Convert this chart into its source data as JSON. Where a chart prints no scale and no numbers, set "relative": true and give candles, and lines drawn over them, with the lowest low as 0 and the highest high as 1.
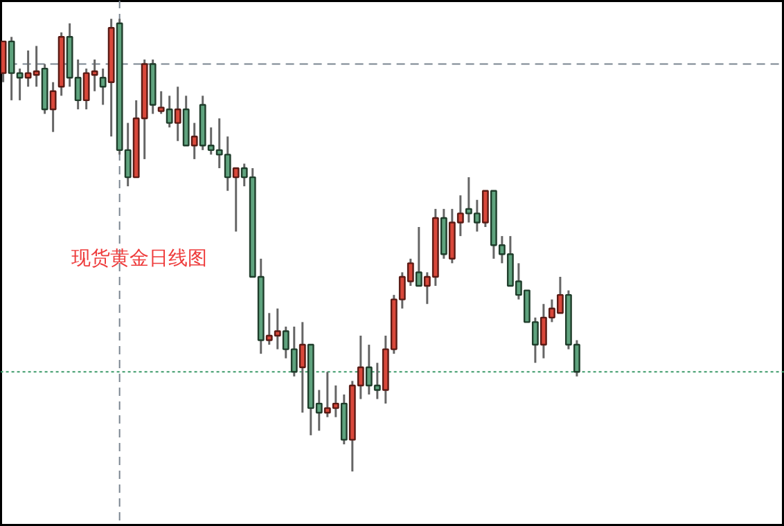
{
  "chart_data": {
    "type": "candlestick",
    "relative": true,
    "categories": [
      null,
      null,
      null,
      null,
      null,
      null,
      null,
      null,
      null,
      null,
      null,
      null,
      null,
      null,
      null,
      null,
      null,
      null,
      null,
      null,
      null,
      null,
      null,
      null,
      null,
      null,
      null,
      null,
      null,
      null,
      null,
      null,
      null,
      null,
      null,
      null,
      null,
      null,
      null,
      null,
      null,
      null,
      null,
      null,
      null,
      null,
      null,
      null,
      null,
      null,
      null,
      null,
      null,
      null,
      null,
      null,
      null,
      null,
      null,
      null,
      null,
      null,
      null,
      null,
      null,
      null,
      null,
      null,
      null,
      null
    ],
    "ohlc": [
      [
        0.88,
        0.95,
        0.86,
        0.95
      ],
      [
        0.95,
        0.96,
        0.82,
        0.88
      ],
      [
        0.88,
        0.89,
        0.82,
        0.87
      ],
      [
        0.87,
        0.93,
        0.85,
        0.88
      ],
      [
        0.88,
        0.94,
        0.85,
        0.88
      ],
      [
        0.89,
        0.9,
        0.79,
        0.8
      ],
      [
        0.8,
        0.86,
        0.75,
        0.84
      ],
      [
        0.85,
        0.97,
        0.83,
        0.96
      ],
      [
        0.96,
        0.99,
        0.85,
        0.87
      ],
      [
        0.87,
        0.91,
        0.8,
        0.82
      ],
      [
        0.82,
        0.89,
        0.8,
        0.88
      ],
      [
        0.88,
        0.91,
        0.84,
        0.88
      ],
      [
        0.87,
        0.89,
        0.81,
        0.85
      ],
      [
        0.86,
        1.0,
        0.74,
        0.98
      ],
      [
        0.99,
        1.0,
        0.7,
        0.71
      ],
      [
        0.71,
        0.77,
        0.63,
        0.65
      ],
      [
        0.65,
        0.82,
        0.65,
        0.78
      ],
      [
        0.78,
        0.91,
        0.69,
        0.9
      ],
      [
        0.9,
        0.91,
        0.79,
        0.81
      ],
      [
        0.8,
        0.84,
        0.79,
        0.8
      ],
      [
        0.8,
        0.83,
        0.76,
        0.77
      ],
      [
        0.77,
        0.85,
        0.73,
        0.8
      ],
      [
        0.8,
        0.83,
        0.72,
        0.72
      ],
      [
        0.72,
        0.77,
        0.69,
        0.74
      ],
      [
        0.81,
        0.83,
        0.71,
        0.72
      ],
      [
        0.72,
        0.76,
        0.7,
        0.71
      ],
      [
        0.71,
        0.78,
        0.67,
        0.7
      ],
      [
        0.7,
        0.74,
        0.62,
        0.65
      ],
      [
        0.65,
        0.67,
        0.53,
        0.67
      ],
      [
        0.67,
        0.68,
        0.63,
        0.65
      ],
      [
        0.65,
        0.67,
        0.43,
        0.43
      ],
      [
        0.43,
        0.47,
        0.26,
        0.29
      ],
      [
        0.29,
        0.35,
        0.28,
        0.3
      ],
      [
        0.3,
        0.36,
        0.27,
        0.31
      ],
      [
        0.31,
        0.32,
        0.25,
        0.27
      ],
      [
        0.27,
        0.32,
        0.21,
        0.22
      ],
      [
        0.23,
        0.33,
        0.13,
        0.28
      ],
      [
        0.28,
        0.28,
        0.08,
        0.14
      ],
      [
        0.15,
        0.18,
        0.09,
        0.13
      ],
      [
        0.13,
        0.22,
        0.12,
        0.14
      ],
      [
        0.14,
        0.19,
        0.12,
        0.15
      ],
      [
        0.15,
        0.17,
        0.06,
        0.07
      ],
      [
        0.07,
        0.2,
        0,
        0.19
      ],
      [
        0.19,
        0.3,
        0.16,
        0.23
      ],
      [
        0.23,
        0.28,
        0.17,
        0.19
      ],
      [
        0.19,
        0.24,
        0.16,
        0.18
      ],
      [
        0.18,
        0.3,
        0.15,
        0.27
      ],
      [
        0.27,
        0.39,
        0.26,
        0.38
      ],
      [
        0.38,
        0.44,
        0.36,
        0.43
      ],
      [
        0.42,
        0.47,
        0.41,
        0.46
      ],
      [
        0.44,
        0.54,
        0.41,
        0.41
      ],
      [
        0.41,
        0.44,
        0.37,
        0.43
      ],
      [
        0.43,
        0.58,
        0.41,
        0.56
      ],
      [
        0.56,
        0.58,
        0.47,
        0.48
      ],
      [
        0.47,
        0.58,
        0.46,
        0.55
      ],
      [
        0.55,
        0.61,
        0.52,
        0.57
      ],
      [
        0.58,
        0.65,
        0.55,
        0.57
      ],
      [
        0.57,
        0.6,
        0.53,
        0.55
      ],
      [
        0.55,
        0.62,
        0.54,
        0.62
      ],
      [
        0.62,
        0.62,
        0.47,
        0.5
      ],
      [
        0.5,
        0.52,
        0.46,
        0.48
      ],
      [
        0.48,
        0.52,
        0.41,
        0.41
      ],
      [
        0.42,
        0.46,
        0.38,
        0.39
      ],
      [
        0.4,
        0.4,
        0.33,
        0.33
      ],
      [
        0.33,
        0.34,
        0.24,
        0.28
      ],
      [
        0.28,
        0.37,
        0.25,
        0.34
      ],
      [
        0.34,
        0.38,
        0.33,
        0.36
      ],
      [
        0.35,
        0.43,
        0.35,
        0.39
      ],
      [
        0.39,
        0.4,
        0.27,
        0.28
      ],
      [
        0.28,
        0.29,
        0.21,
        0.22
      ]
    ],
    "colors": [
      "#d9483b",
      "#5fa37e",
      "#5fa37e",
      "#d9483b",
      "#d9483b",
      "#5fa37e",
      "#d9483b",
      "#d9483b",
      "#5fa37e",
      "#5fa37e",
      "#d9483b",
      "#d9483b",
      "#5fa37e",
      "#d9483b",
      "#5fa37e",
      "#5fa37e",
      "#d9483b",
      "#d9483b",
      "#5fa37e",
      "#d9483b",
      "#5fa37e",
      "#d9483b",
      "#5fa37e",
      "#d9483b",
      "#5fa37e",
      "#5fa37e",
      "#5fa37e",
      "#5fa37e",
      "#d9483b",
      "#5fa37e",
      "#5fa37e",
      "#5fa37e",
      "#d9483b",
      "#d9483b",
      "#5fa37e",
      "#5fa37e",
      "#d9483b",
      "#5fa37e",
      "#5fa37e",
      "#d9483b",
      "#d9483b",
      "#5fa37e",
      "#d9483b",
      "#d9483b",
      "#5fa37e",
      "#5fa37e",
      "#d9483b",
      "#d9483b",
      "#d9483b",
      "#d9483b",
      "#5fa37e",
      "#d9483b",
      "#d9483b",
      "#5fa37e",
      "#d9483b",
      "#d9483b",
      "#5fa37e",
      "#5fa37e",
      "#d9483b",
      "#5fa37e",
      "#5fa37e",
      "#5fa37e",
      "#5fa37e",
      "#5fa37e",
      "#5fa37e",
      "#d9483b",
      "#d9483b",
      "#d9483b",
      "#5fa37e",
      "#5fa37e"
    ],
    "ref_lines": [
      {
        "axis": "y",
        "value": 0.9,
        "color": "#7a8590",
        "line_style": "dashed"
      },
      {
        "axis": "y",
        "value": 0.22,
        "color": "#3d9a6a",
        "line_style": "dotted"
      }
    ],
    "annotations": [
      "现货黄金日线图"
    ],
    "tick_labels": false
  }
}
